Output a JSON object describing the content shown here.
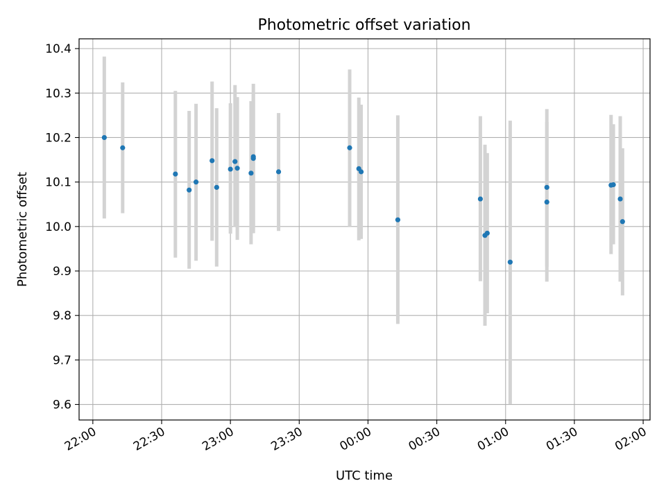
{
  "chart_data": {
    "type": "scatter",
    "title": "Photometric offset variation",
    "xlabel": "UTC time",
    "ylabel": "Photometric offset",
    "x_axis_kind": "time",
    "xlim": [
      "21:54",
      "02:03"
    ],
    "ylim": [
      9.565,
      10.422
    ],
    "x_ticks": [
      "22:00",
      "22:30",
      "23:00",
      "23:30",
      "00:00",
      "00:30",
      "01:00",
      "01:30",
      "02:00"
    ],
    "y_ticks": [
      "9.6",
      "9.7",
      "9.8",
      "9.9",
      "10.0",
      "10.1",
      "10.2",
      "10.3",
      "10.4"
    ],
    "grid": true,
    "point_color": "#1f77b4",
    "errorbar_color": "#d3d3d3",
    "points": [
      {
        "t": "22:05",
        "y": 10.2,
        "err_low": 10.018,
        "err_high": 10.382
      },
      {
        "t": "22:13",
        "y": 10.177,
        "err_low": 10.03,
        "err_high": 10.324
      },
      {
        "t": "22:36",
        "y": 10.118,
        "err_low": 9.93,
        "err_high": 10.305
      },
      {
        "t": "22:42",
        "y": 10.082,
        "err_low": 9.905,
        "err_high": 10.26
      },
      {
        "t": "22:45",
        "y": 10.1,
        "err_low": 9.923,
        "err_high": 10.276
      },
      {
        "t": "22:52",
        "y": 10.148,
        "err_low": 9.968,
        "err_high": 10.326
      },
      {
        "t": "22:54",
        "y": 10.088,
        "err_low": 9.91,
        "err_high": 10.266
      },
      {
        "t": "23:00",
        "y": 10.129,
        "err_low": 9.984,
        "err_high": 10.277
      },
      {
        "t": "23:02",
        "y": 10.146,
        "err_low": 10.0,
        "err_high": 10.318
      },
      {
        "t": "23:03",
        "y": 10.131,
        "err_low": 9.97,
        "err_high": 10.291
      },
      {
        "t": "23:09",
        "y": 10.12,
        "err_low": 9.96,
        "err_high": 10.282
      },
      {
        "t": "23:10",
        "y": 10.153,
        "err_low": 9.985,
        "err_high": 10.321
      },
      {
        "t": "23:10",
        "y": 10.157,
        "err_low": 10.0,
        "err_high": 10.3
      },
      {
        "t": "23:21",
        "y": 10.123,
        "err_low": 9.99,
        "err_high": 10.255
      },
      {
        "t": "23:52",
        "y": 10.177,
        "err_low": 10.0,
        "err_high": 10.353
      },
      {
        "t": "23:56",
        "y": 10.13,
        "err_low": 9.969,
        "err_high": 10.29
      },
      {
        "t": "23:57",
        "y": 10.123,
        "err_low": 9.972,
        "err_high": 10.274
      },
      {
        "t": "00:13",
        "y": 10.015,
        "err_low": 9.781,
        "err_high": 10.25
      },
      {
        "t": "00:49",
        "y": 10.062,
        "err_low": 9.877,
        "err_high": 10.248
      },
      {
        "t": "00:51",
        "y": 9.98,
        "err_low": 9.777,
        "err_high": 10.184
      },
      {
        "t": "00:52",
        "y": 9.985,
        "err_low": 9.805,
        "err_high": 10.165
      },
      {
        "t": "01:02",
        "y": 9.92,
        "err_low": 9.601,
        "err_high": 10.238
      },
      {
        "t": "01:18",
        "y": 10.088,
        "err_low": 9.91,
        "err_high": 10.264
      },
      {
        "t": "01:18",
        "y": 10.055,
        "err_low": 9.876,
        "err_high": 10.235
      },
      {
        "t": "01:46",
        "y": 10.093,
        "err_low": 9.938,
        "err_high": 10.251
      },
      {
        "t": "01:47",
        "y": 10.094,
        "err_low": 9.96,
        "err_high": 10.23
      },
      {
        "t": "01:50",
        "y": 10.062,
        "err_low": 9.876,
        "err_high": 10.248
      },
      {
        "t": "01:51",
        "y": 10.011,
        "err_low": 9.845,
        "err_high": 10.176
      }
    ]
  }
}
